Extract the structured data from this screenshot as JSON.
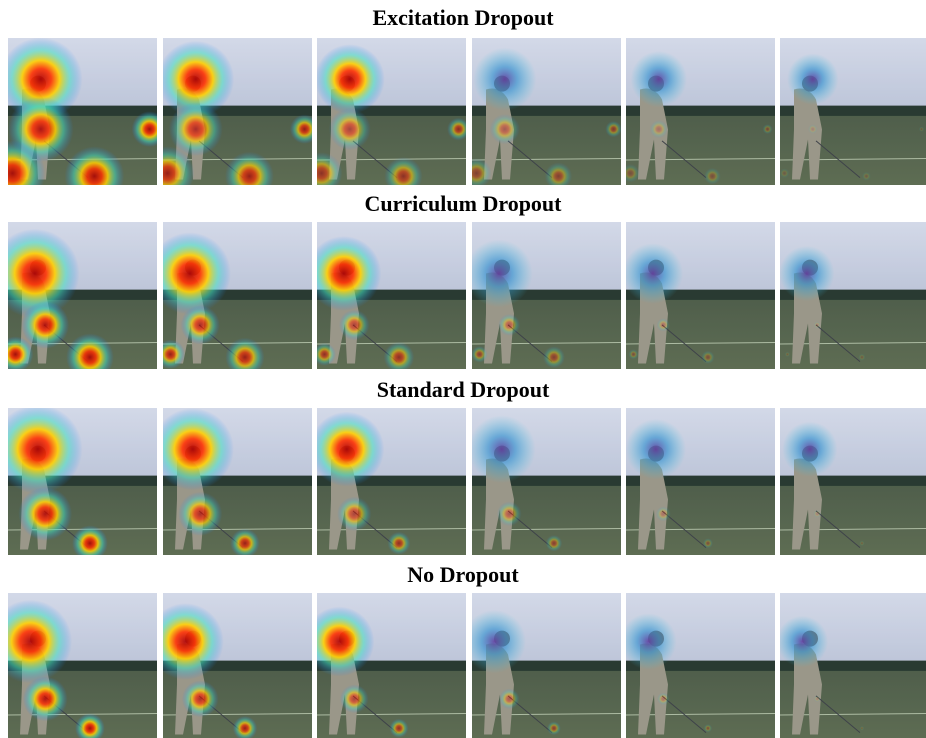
{
  "sections": [
    {
      "title": "Excitation Dropout"
    },
    {
      "title": "Curriculum Dropout"
    },
    {
      "title": "Standard Dropout"
    },
    {
      "title": "No Dropout"
    }
  ]
}
